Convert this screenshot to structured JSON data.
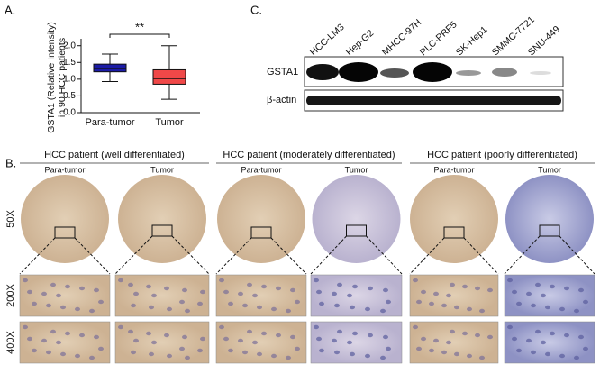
{
  "chart_data": {
    "type": "box",
    "panel_label": "A.",
    "y_label_lines": [
      "GSTA1 (Relative Intensity)",
      "in 90 HCC patients"
    ],
    "categories": [
      "Para-tumor",
      "Tumor"
    ],
    "boxes": [
      {
        "min": 0.93,
        "q1": 1.22,
        "median": 1.32,
        "q3": 1.45,
        "max": 1.75,
        "color": "#1c1ca6"
      },
      {
        "min": 0.4,
        "q1": 0.85,
        "median": 1.02,
        "q3": 1.28,
        "max": 2.0,
        "color": "#f04848"
      }
    ],
    "ylim": [
      0,
      2.1
    ],
    "yticks": [
      {
        "value": 0,
        "label": "0.0"
      },
      0.5,
      {
        "value": 1,
        "label": "1.0"
      },
      1.5,
      {
        "value": 2,
        "label": "2.0"
      }
    ],
    "annotation": "**"
  },
  "panel_b": {
    "label": "B.",
    "groups": [
      {
        "title": "HCC patient  (well  differentiated)",
        "columns": [
          "Para-tumor",
          "Tumor"
        ]
      },
      {
        "title": "HCC patient  (moderately differentiated)",
        "columns": [
          "Para-tumor",
          "Tumor"
        ]
      },
      {
        "title": "HCC patient  (poorly differentiated)",
        "columns": [
          "Para-tumor",
          "Tumor"
        ]
      }
    ],
    "rows": [
      "50X",
      "200X",
      "400X"
    ]
  },
  "panel_c": {
    "label": "C.",
    "lanes": [
      "HCC-LM3",
      "Hep-G2",
      "MHCC-97H",
      "PLC-PRF5",
      "SK-Hep1",
      "SMMC-7721",
      "SNU-449"
    ],
    "rows": [
      "GSTA1",
      "β-actin"
    ]
  }
}
